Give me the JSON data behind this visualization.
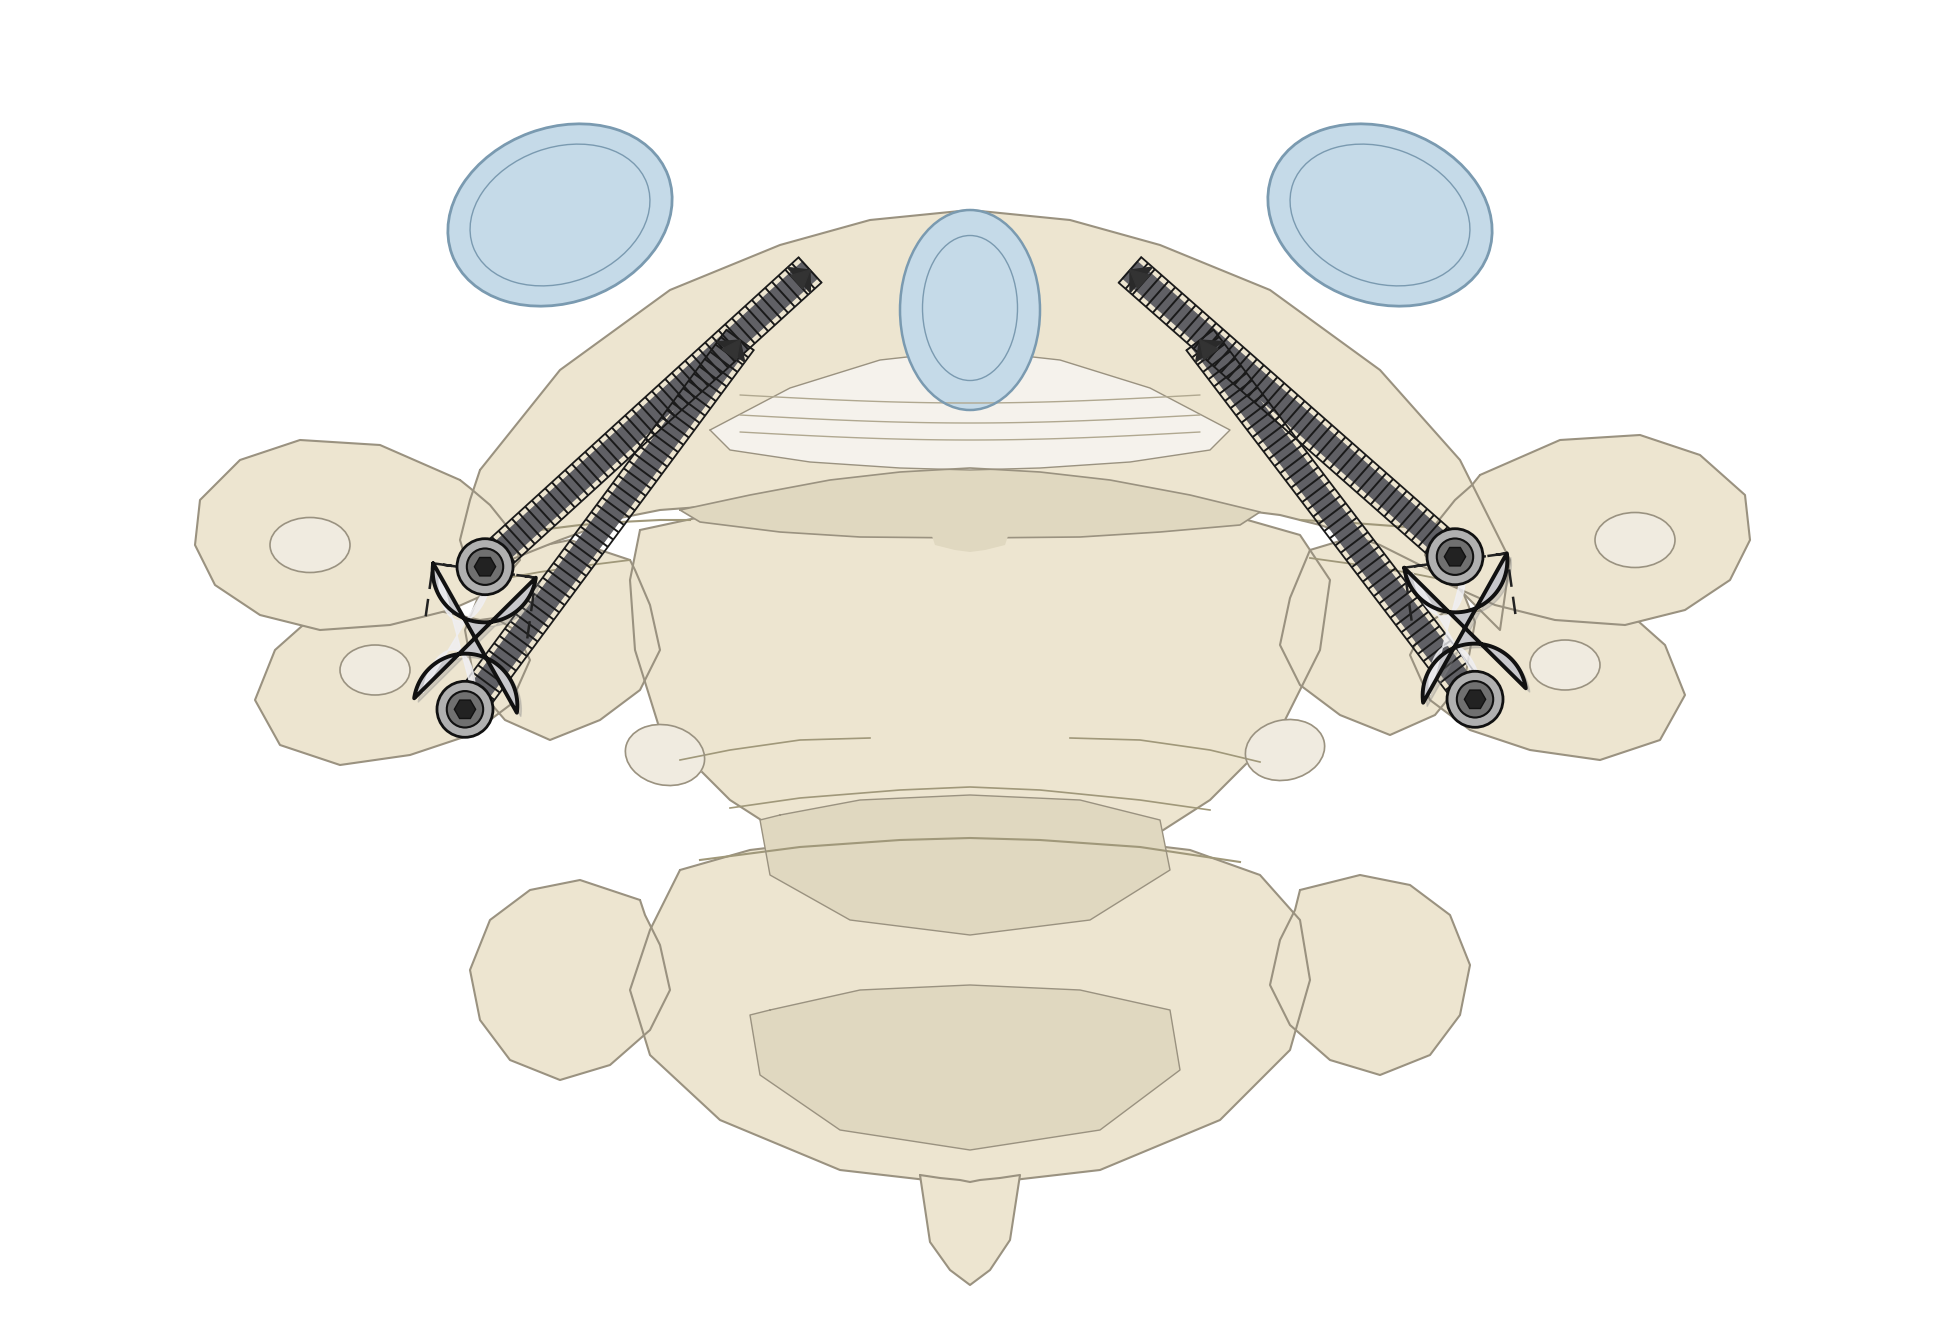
{
  "background_color": "#ffffff",
  "bone_light": "#ede5d0",
  "bone_mid": "#e0d8c0",
  "bone_dark": "#c8c0a8",
  "bone_outline": "#9a9280",
  "bone_shadow": "#b8b0a0",
  "cartilage_fill": "#c5dae8",
  "cartilage_outline": "#7a9ab0",
  "plate_light": "#f0f0f2",
  "plate_mid": "#d0d0d4",
  "plate_dark": "#a0a0a8",
  "plate_outline": "#1a1a1a",
  "screw_dark": "#2a2a2a",
  "screw_mid": "#555560",
  "screw_light": "#888890",
  "figsize": [
    19.39,
    13.39
  ],
  "dpi": 100
}
